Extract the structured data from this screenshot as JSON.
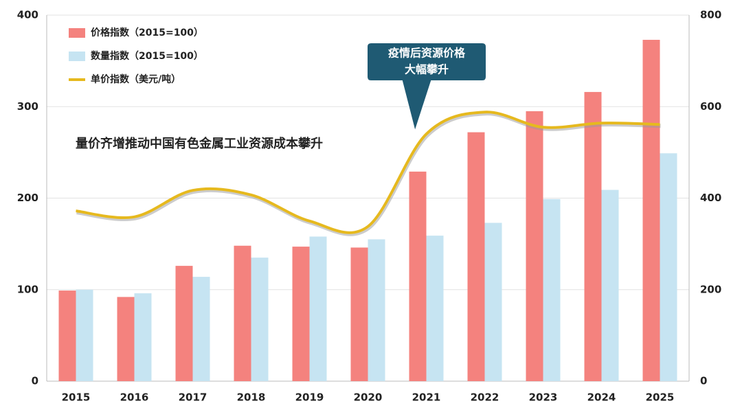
{
  "chart_data": {
    "type": "bar-line",
    "categories": [
      "2015",
      "2016",
      "2017",
      "2018",
      "2019",
      "2020",
      "2021",
      "2022",
      "2023",
      "2024",
      "2025"
    ],
    "series": [
      {
        "name": "价格指数（2015=100）",
        "color": "#f4827e",
        "type": "bar",
        "values": [
          99,
          92,
          126,
          148,
          147,
          146,
          229,
          272,
          295,
          316,
          373
        ]
      },
      {
        "name": "数量指数（2015=100）",
        "color": "#c6e4f2",
        "type": "bar",
        "values": [
          100,
          96,
          114,
          135,
          158,
          155,
          159,
          173,
          199,
          209,
          249
        ]
      },
      {
        "name": "单价指数（美元/吨）",
        "color": "#e6b91e",
        "type": "line",
        "axis": "y2",
        "values": [
          372,
          359,
          417,
          407,
          350,
          338,
          540,
          588,
          555,
          564,
          561
        ]
      }
    ],
    "ylim": [
      0,
      400
    ],
    "yticks": [
      0,
      100,
      200,
      300,
      400
    ],
    "y2lim": [
      0,
      800
    ],
    "y2ticks": [
      0,
      200,
      400,
      600,
      800
    ],
    "grid": true,
    "annotation": "量价齐增推动中国有色金属工业资源成本攀升",
    "callout": [
      "疫情后资源价格",
      "大幅攀升"
    ]
  }
}
